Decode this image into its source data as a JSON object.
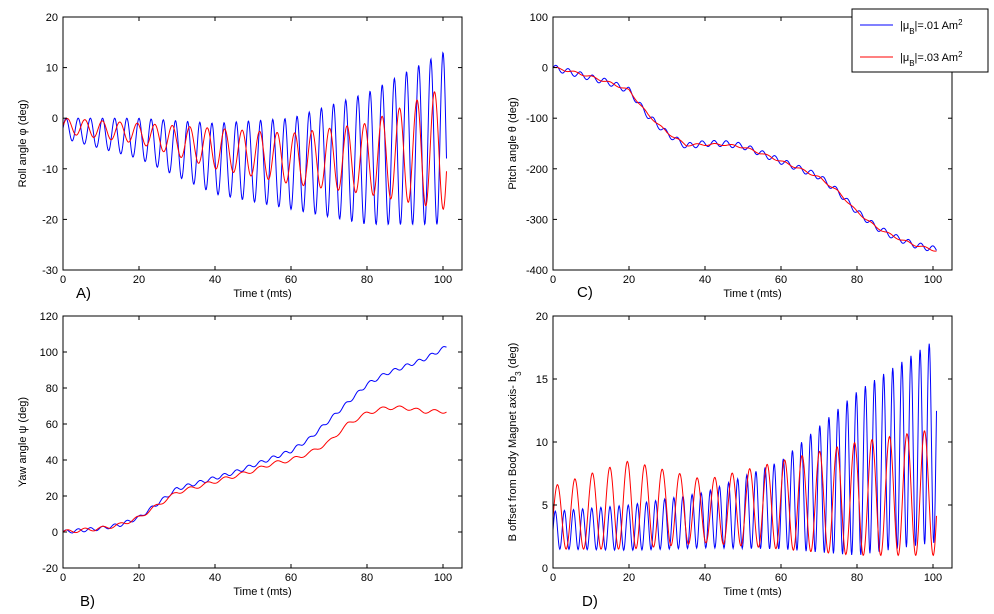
{
  "chart_data": [
    {
      "type": "line",
      "panel_label": "A)",
      "xlabel": "Time t (mts)",
      "ylabel": "Roll angle φ (deg)",
      "xlim": [
        0,
        105
      ],
      "ylim": [
        -30,
        20
      ],
      "xticks": [
        "0",
        "20",
        "40",
        "60",
        "80",
        "100"
      ],
      "yticks": [
        "-30",
        "-20",
        "-10",
        "0",
        "10",
        "20"
      ],
      "series": [
        {
          "name": "|μB|=.01 Am2",
          "color": "#0000ff",
          "x": [
            0,
            20,
            40,
            60,
            80,
            100
          ],
          "mean": [
            -2,
            -4,
            -8,
            -9,
            -8,
            -4
          ],
          "amp": [
            2,
            4,
            7,
            9,
            13,
            17
          ],
          "period": 3.2
        },
        {
          "name": "|μB|=.03 Am2",
          "color": "#ff0000",
          "x": [
            0,
            20,
            40,
            60,
            80,
            100
          ],
          "mean": [
            -1.5,
            -3,
            -6,
            -8,
            -8,
            -6
          ],
          "amp": [
            1.5,
            2,
            4,
            5,
            7,
            12
          ],
          "period": 4.6
        }
      ]
    },
    {
      "type": "line",
      "panel_label": "C)",
      "xlabel": "Time t (mts)",
      "ylabel": "Pitch angle θ (deg)",
      "xlim": [
        0,
        105
      ],
      "ylim": [
        -400,
        100
      ],
      "xticks": [
        "0",
        "20",
        "40",
        "60",
        "80",
        "100"
      ],
      "yticks": [
        "-400",
        "-300",
        "-200",
        "-100",
        "0",
        "100"
      ],
      "series": [
        {
          "name": "|μB|=.01 Am2",
          "color": "#0000ff",
          "x": [
            0,
            5,
            10,
            15,
            20,
            25,
            30,
            35,
            40,
            45,
            50,
            55,
            60,
            65,
            70,
            75,
            80,
            85,
            90,
            95,
            101
          ],
          "y": [
            0,
            -10,
            -20,
            -30,
            -45,
            -95,
            -130,
            -155,
            -150,
            -150,
            -155,
            -170,
            -185,
            -200,
            -215,
            -245,
            -285,
            -315,
            -335,
            -350,
            -360
          ],
          "ripple": 6,
          "period": 3.2
        },
        {
          "name": "|μB|=.03 Am2",
          "color": "#ff0000",
          "x": [
            0,
            5,
            10,
            15,
            20,
            25,
            30,
            35,
            40,
            45,
            50,
            55,
            60,
            65,
            70,
            75,
            80,
            85,
            90,
            95,
            101
          ],
          "y": [
            0,
            -8,
            -18,
            -30,
            -45,
            -93,
            -128,
            -153,
            -152,
            -152,
            -157,
            -170,
            -185,
            -200,
            -217,
            -245,
            -285,
            -315,
            -335,
            -350,
            -362
          ],
          "ripple": 2,
          "period": 4.6
        }
      ]
    },
    {
      "type": "line",
      "panel_label": "B)",
      "xlabel": "Time t (mts)",
      "ylabel": "Yaw angle ψ (deg)",
      "xlim": [
        0,
        105
      ],
      "ylim": [
        -20,
        120
      ],
      "xticks": [
        "0",
        "20",
        "40",
        "60",
        "80",
        "100"
      ],
      "yticks": [
        "-20",
        "0",
        "20",
        "40",
        "60",
        "80",
        "100",
        "120"
      ],
      "series": [
        {
          "name": "|μB|=.01 Am2",
          "color": "#0000ff",
          "x": [
            0,
            5,
            10,
            15,
            20,
            25,
            30,
            35,
            40,
            45,
            50,
            55,
            60,
            65,
            70,
            75,
            80,
            85,
            90,
            95,
            101
          ],
          "y": [
            0,
            1,
            2,
            4,
            8,
            16,
            24,
            27,
            30,
            33,
            37,
            41,
            45,
            52,
            62,
            72,
            82,
            88,
            92,
            96,
            103
          ],
          "ripple": 1,
          "period": 3.2
        },
        {
          "name": "|μB|=.03 Am2",
          "color": "#ff0000",
          "x": [
            0,
            5,
            10,
            15,
            20,
            25,
            30,
            35,
            40,
            45,
            50,
            55,
            60,
            65,
            70,
            75,
            80,
            85,
            90,
            95,
            101
          ],
          "y": [
            0,
            1,
            2,
            4,
            8,
            15,
            22,
            25,
            28,
            31,
            34,
            38,
            40,
            44,
            50,
            60,
            66,
            69,
            69,
            67,
            67
          ],
          "ripple": 1,
          "period": 4.6
        }
      ]
    },
    {
      "type": "line",
      "panel_label": "D)",
      "xlabel": "Time t (mts)",
      "ylabel": "B offset from Body Magnet axis- b3 (deg)",
      "xlim": [
        0,
        105
      ],
      "ylim": [
        0,
        20
      ],
      "xticks": [
        "0",
        "20",
        "40",
        "60",
        "80",
        "100"
      ],
      "yticks": [
        "0",
        "5",
        "10",
        "15",
        "20"
      ],
      "series": [
        {
          "name": "|μB|=.01 Am2",
          "color": "#0000ff",
          "x": [
            0,
            20,
            40,
            60,
            80,
            100
          ],
          "mean": [
            3,
            3.2,
            3.8,
            5,
            7.5,
            10
          ],
          "amp": [
            1.5,
            1.8,
            2.2,
            3.5,
            6.5,
            8
          ],
          "period": 2.4
        },
        {
          "name": "|μB|=.03 Am2",
          "color": "#ff0000",
          "x": [
            0,
            20,
            40,
            60,
            80,
            100
          ],
          "mean": [
            4,
            5,
            4.5,
            5,
            5.5,
            6
          ],
          "amp": [
            2.5,
            3.5,
            2.5,
            3.5,
            4.5,
            5
          ],
          "period": 4.6
        }
      ]
    }
  ],
  "legend": {
    "entries": [
      {
        "mu": "μ",
        "sub": "B",
        "value": "|=.01 Am",
        "sup": "2",
        "color": "#0000ff"
      },
      {
        "mu": "μ",
        "sub": "B",
        "value": "|=.03 Am",
        "sup": "2",
        "color": "#ff0000"
      }
    ],
    "bar_left": "|"
  },
  "ylabel_parts": {
    "roll": "Roll angle φ (deg)",
    "pitch": "Pitch angle θ (deg)",
    "yaw": "Yaw angle ψ (deg)",
    "offset_main": "B offset from Body Magnet axis- b",
    "offset_sub": "3",
    "offset_tail": " (deg)"
  }
}
